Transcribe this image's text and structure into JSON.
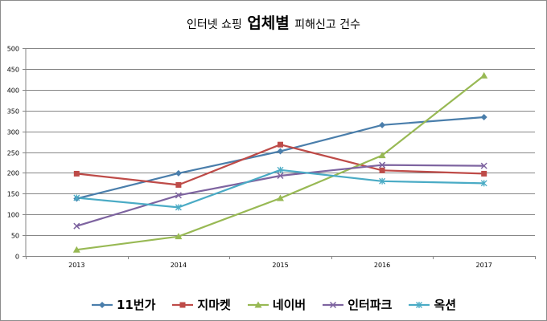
{
  "chart_data": {
    "type": "line",
    "title_parts": [
      "인터넷 쇼핑 ",
      "업체별",
      " 피해신고 건수"
    ],
    "title": "인터넷 쇼핑 업체별 피해신고 건수",
    "x": [
      "2013",
      "2014",
      "2015",
      "2016",
      "2017"
    ],
    "ylim": [
      0,
      500
    ],
    "yticks": [
      0,
      50,
      100,
      150,
      200,
      250,
      300,
      350,
      400,
      450,
      500
    ],
    "grid": true,
    "legend_position": "bottom",
    "series": [
      {
        "name": "11번가",
        "values": [
          138,
          199,
          252,
          315,
          334
        ],
        "color": "#4a7eab",
        "marker": "diamond"
      },
      {
        "name": "지마켓",
        "values": [
          198,
          171,
          268,
          206,
          198
        ],
        "color": "#be4b48",
        "marker": "square"
      },
      {
        "name": "네이버",
        "values": [
          15,
          47,
          139,
          242,
          434
        ],
        "color": "#98b954",
        "marker": "triangle"
      },
      {
        "name": "인터파크",
        "values": [
          72,
          146,
          193,
          219,
          217
        ],
        "color": "#7e64a0",
        "marker": "x"
      },
      {
        "name": "옥션",
        "values": [
          140,
          117,
          207,
          180,
          175
        ],
        "color": "#4aabc5",
        "marker": "star"
      }
    ]
  }
}
